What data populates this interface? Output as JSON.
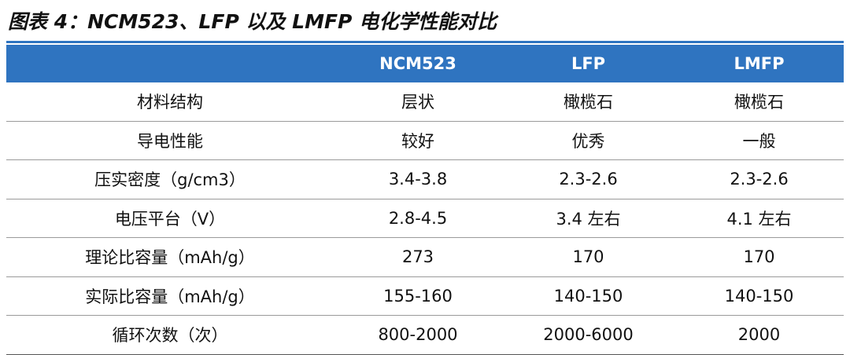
{
  "figure": {
    "title": "图表 4：NCM523、LFP 以及 LMFP 电化学性能对比"
  },
  "table": {
    "headers": [
      "",
      "NCM523",
      "LFP",
      "LMFP"
    ],
    "rows": [
      {
        "label": "材料结构",
        "values": [
          "层状",
          "橄榄石",
          "橄榄石"
        ]
      },
      {
        "label": "导电性能",
        "values": [
          "较好",
          "优秀",
          "一般"
        ]
      },
      {
        "label": "压实密度（g/cm3）",
        "values": [
          "3.4-3.8",
          "2.3-2.6",
          "2.3-2.6"
        ]
      },
      {
        "label": "电压平台（V）",
        "values": [
          "2.8-4.5",
          "3.4 左右",
          "4.1 左右"
        ]
      },
      {
        "label": "理论比容量（mAh/g）",
        "values": [
          "273",
          "170",
          "170"
        ]
      },
      {
        "label": "实际比容量（mAh/g）",
        "values": [
          "155-160",
          "140-150",
          "140-150"
        ]
      },
      {
        "label": "循环次数（次）",
        "values": [
          "800-2000",
          "2000-6000",
          "2000"
        ]
      }
    ]
  },
  "colors": {
    "header_bg": "#2f74c0",
    "header_text": "#ffffff",
    "rule": "#9a9a9a"
  }
}
